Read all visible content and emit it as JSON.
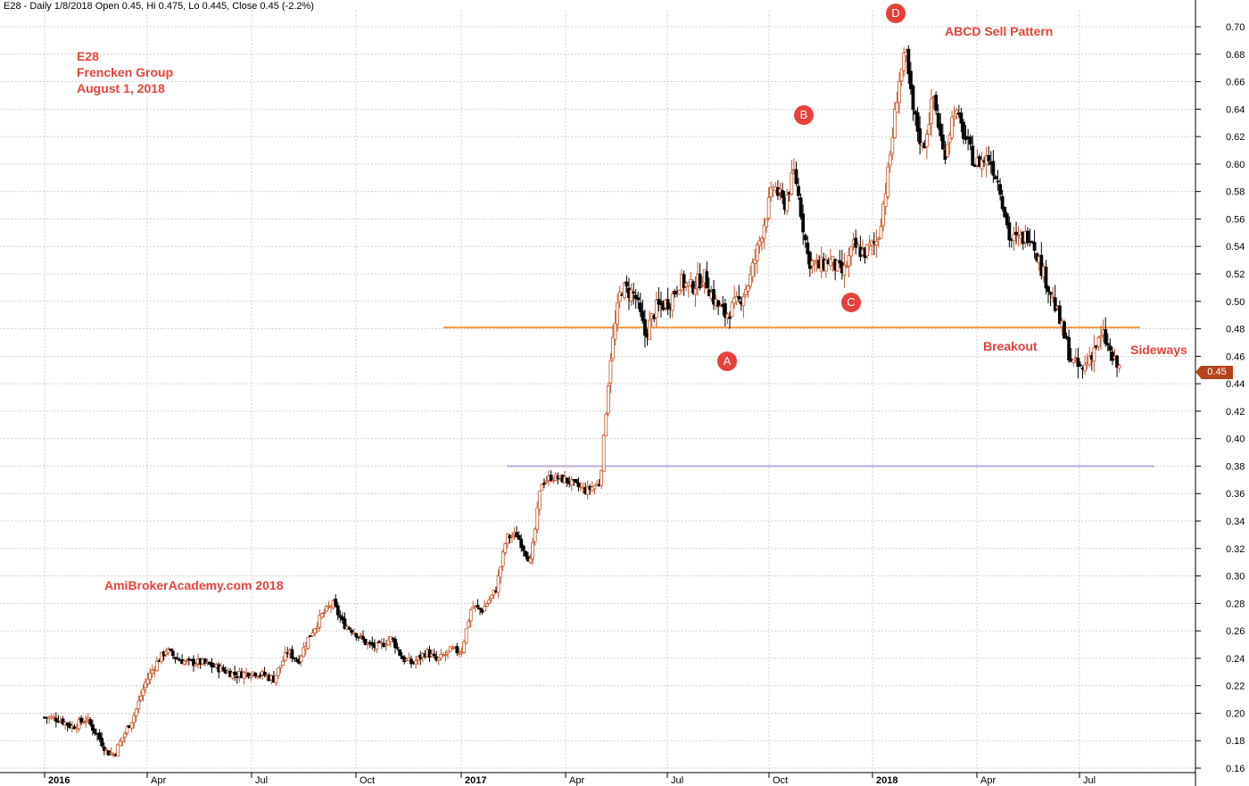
{
  "header": {
    "text": "E28 - Daily 1/8/2018 Open 0.45, Hi 0.475, Lo 0.445, Close 0.45 (-2.2%)"
  },
  "annotations": {
    "symbol": "E28",
    "company": "Frencken Group",
    "date": "August 1, 2018",
    "pattern": "ABCD Sell Pattern",
    "watermark": "AmiBrokerAcademy.com  2018",
    "breakout": "Breakout",
    "sideways": "Sideways",
    "point_a": "A",
    "point_b": "B",
    "point_c": "C",
    "point_d": "D"
  },
  "colors": {
    "text_accent": "#e8413a",
    "up_candle": "#c8542a",
    "down_candle": "#000000",
    "breakout_line": "#f5a04a",
    "support_line": "#b9a8d8",
    "last_price_tag": "#b5441a"
  },
  "last_price": "0.45",
  "chart_data": {
    "type": "candlestick",
    "ylim": [
      0.16,
      0.7
    ],
    "yticks": [
      "0.70",
      "0.68",
      "0.66",
      "0.64",
      "0.62",
      "0.60",
      "0.58",
      "0.56",
      "0.54",
      "0.52",
      "0.50",
      "0.48",
      "0.46",
      "0.44",
      "0.42",
      "0.40",
      "0.38",
      "0.36",
      "0.34",
      "0.32",
      "0.30",
      "0.28",
      "0.26",
      "0.24",
      "0.22",
      "0.20",
      "0.18",
      "0.16"
    ],
    "xticks": [
      "2016",
      "Apr",
      "Jul",
      "Oct",
      "2017",
      "Apr",
      "Jul",
      "Oct",
      "2018",
      "Apr",
      "Jul"
    ],
    "x_major": [
      "2016",
      "2017",
      "2018"
    ],
    "grid": true,
    "hlines": [
      {
        "value": 0.481,
        "from": "2016-12 mid",
        "to": "2018-08 end",
        "color": "breakout_line"
      },
      {
        "value": 0.38,
        "from": "2017-02",
        "to": "2018-08 end",
        "color": "support_line"
      }
    ],
    "swing_points": [
      {
        "label": "A",
        "value": 0.48
      },
      {
        "label": "B",
        "value": 0.615
      },
      {
        "label": "C",
        "value": 0.515
      },
      {
        "label": "D",
        "value": 0.69
      }
    ],
    "close_path": [
      [
        0.0,
        0.197
      ],
      [
        0.4,
        0.196
      ],
      [
        0.8,
        0.19
      ],
      [
        1.2,
        0.196
      ],
      [
        1.5,
        0.185
      ],
      [
        1.8,
        0.172
      ],
      [
        2.0,
        0.17
      ],
      [
        2.3,
        0.185
      ],
      [
        2.6,
        0.2
      ],
      [
        2.9,
        0.222
      ],
      [
        3.2,
        0.236
      ],
      [
        3.5,
        0.246
      ],
      [
        3.8,
        0.24
      ],
      [
        4.1,
        0.237
      ],
      [
        4.5,
        0.237
      ],
      [
        5.0,
        0.233
      ],
      [
        5.5,
        0.228
      ],
      [
        6.0,
        0.23
      ],
      [
        6.3,
        0.228
      ],
      [
        6.6,
        0.225
      ],
      [
        7.0,
        0.245
      ],
      [
        7.3,
        0.238
      ],
      [
        7.6,
        0.255
      ],
      [
        8.0,
        0.272
      ],
      [
        8.3,
        0.28
      ],
      [
        8.6,
        0.265
      ],
      [
        8.9,
        0.26
      ],
      [
        9.3,
        0.25
      ],
      [
        9.6,
        0.248
      ],
      [
        10.0,
        0.255
      ],
      [
        10.3,
        0.24
      ],
      [
        10.6,
        0.236
      ],
      [
        11.0,
        0.245
      ],
      [
        11.3,
        0.238
      ],
      [
        11.7,
        0.246
      ],
      [
        12.0,
        0.245
      ],
      [
        12.3,
        0.278
      ],
      [
        12.6,
        0.275
      ],
      [
        13.0,
        0.29
      ],
      [
        13.3,
        0.328
      ],
      [
        13.6,
        0.33
      ],
      [
        14.0,
        0.31
      ],
      [
        14.3,
        0.368
      ],
      [
        14.6,
        0.372
      ],
      [
        15.0,
        0.37
      ],
      [
        15.3,
        0.366
      ],
      [
        15.6,
        0.362
      ],
      [
        16.0,
        0.368
      ],
      [
        16.3,
        0.46
      ],
      [
        16.6,
        0.51
      ],
      [
        17.0,
        0.505
      ],
      [
        17.3,
        0.475
      ],
      [
        17.6,
        0.495
      ],
      [
        18.0,
        0.5
      ],
      [
        18.3,
        0.515
      ],
      [
        18.6,
        0.51
      ],
      [
        19.0,
        0.518
      ],
      [
        19.3,
        0.5
      ],
      [
        19.6,
        0.49
      ],
      [
        20.0,
        0.5
      ],
      [
        20.3,
        0.515
      ],
      [
        20.6,
        0.545
      ],
      [
        21.0,
        0.585
      ],
      [
        21.3,
        0.57
      ],
      [
        21.6,
        0.595
      ],
      [
        22.0,
        0.53
      ],
      [
        22.3,
        0.525
      ],
      [
        22.6,
        0.53
      ],
      [
        23.0,
        0.52
      ],
      [
        23.3,
        0.54
      ],
      [
        23.6,
        0.535
      ],
      [
        24.0,
        0.545
      ],
      [
        24.3,
        0.595
      ],
      [
        24.6,
        0.66
      ],
      [
        24.8,
        0.68
      ],
      [
        25.0,
        0.64
      ],
      [
        25.3,
        0.61
      ],
      [
        25.6,
        0.65
      ],
      [
        25.9,
        0.605
      ],
      [
        26.2,
        0.64
      ],
      [
        26.5,
        0.62
      ],
      [
        26.8,
        0.6
      ],
      [
        27.2,
        0.605
      ],
      [
        27.5,
        0.585
      ],
      [
        27.8,
        0.545
      ],
      [
        28.1,
        0.545
      ],
      [
        28.4,
        0.55
      ],
      [
        28.7,
        0.525
      ],
      [
        29.0,
        0.505
      ],
      [
        29.3,
        0.48
      ],
      [
        29.6,
        0.455
      ],
      [
        29.9,
        0.45
      ],
      [
        30.2,
        0.465
      ],
      [
        30.5,
        0.475
      ],
      [
        30.8,
        0.455
      ],
      [
        31.0,
        0.45
      ]
    ]
  }
}
